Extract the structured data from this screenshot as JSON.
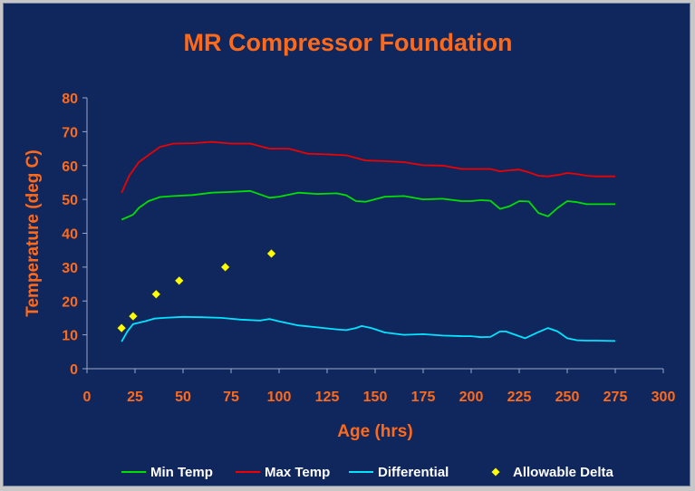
{
  "chart_data": {
    "type": "line",
    "title": "MR Compressor Foundation",
    "xlabel": "Age (hrs)",
    "ylabel": "Temperature (deg C)",
    "xlim": [
      0,
      300
    ],
    "ylim": [
      0,
      80
    ],
    "x_ticks": [
      0,
      25,
      50,
      75,
      100,
      125,
      150,
      175,
      200,
      225,
      250,
      275,
      300
    ],
    "y_ticks": [
      0,
      10,
      20,
      30,
      40,
      50,
      60,
      70,
      80
    ],
    "grid": false,
    "legend_position": "bottom",
    "series": [
      {
        "name": "Min Temp",
        "kind": "line",
        "color": "#00e000",
        "x": [
          18,
          24,
          27,
          32,
          38,
          45,
          55,
          65,
          75,
          85,
          95,
          100,
          110,
          120,
          130,
          135,
          140,
          145,
          155,
          165,
          175,
          185,
          195,
          200,
          205,
          210,
          215,
          220,
          225,
          230,
          235,
          240,
          245,
          250,
          255,
          260,
          265,
          275
        ],
        "y": [
          44,
          45.5,
          47.5,
          49.5,
          50.7,
          51,
          51.3,
          52,
          52.2,
          52.5,
          50.5,
          50.8,
          52,
          51.6,
          51.8,
          51.2,
          49.5,
          49.3,
          50.8,
          51,
          50,
          50.2,
          49.5,
          49.5,
          49.8,
          49.6,
          47.2,
          48,
          49.5,
          49.4,
          46,
          45,
          47.5,
          49.5,
          49.2,
          48.6,
          48.6,
          48.6
        ]
      },
      {
        "name": "Max Temp",
        "kind": "line",
        "color": "#ee0000",
        "x": [
          18,
          22,
          27,
          33,
          38,
          45,
          55,
          65,
          75,
          85,
          95,
          105,
          115,
          125,
          135,
          145,
          155,
          165,
          175,
          185,
          195,
          205,
          210,
          215,
          220,
          225,
          230,
          235,
          240,
          245,
          250,
          255,
          260,
          265,
          275
        ],
        "y": [
          52,
          57,
          61,
          63.5,
          65.5,
          66.5,
          66.6,
          67,
          66.5,
          66.5,
          65,
          65,
          63.5,
          63.3,
          63,
          61.5,
          61.3,
          61,
          60.1,
          60,
          59,
          59,
          59,
          58.3,
          58.6,
          58.8,
          58,
          57,
          56.8,
          57.2,
          57.8,
          57.5,
          57,
          56.8,
          56.8
        ]
      },
      {
        "name": "Differential",
        "kind": "line",
        "color": "#00e5ff",
        "x": [
          18,
          21,
          24,
          30,
          35,
          40,
          50,
          60,
          70,
          80,
          90,
          95,
          100,
          110,
          120,
          130,
          135,
          140,
          143,
          148,
          155,
          165,
          175,
          185,
          195,
          200,
          205,
          210,
          215,
          218,
          222,
          228,
          235,
          240,
          245,
          250,
          255,
          260,
          265,
          275
        ],
        "y": [
          8,
          11,
          13.2,
          14,
          14.8,
          15,
          15.3,
          15.2,
          15,
          14.5,
          14.2,
          14.7,
          14,
          12.8,
          12.2,
          11.6,
          11.4,
          12,
          12.6,
          12,
          10.7,
          10,
          10.2,
          9.8,
          9.6,
          9.6,
          9.3,
          9.4,
          11,
          11,
          10.2,
          9,
          10.8,
          12,
          11,
          9,
          8.4,
          8.3,
          8.3,
          8.2
        ]
      },
      {
        "name": "Allowable Delta",
        "kind": "scatter",
        "color": "#ffff00",
        "marker": "diamond",
        "x": [
          18,
          24,
          36,
          48,
          72,
          96
        ],
        "y": [
          12,
          15.5,
          22,
          26,
          30,
          34
        ]
      }
    ]
  }
}
